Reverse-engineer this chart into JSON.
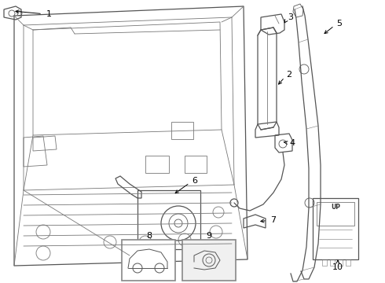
{
  "bg_color": "#ffffff",
  "line_color": "#555555",
  "thin_color": "#777777",
  "label_color": "#000000",
  "figsize": [
    4.9,
    3.6
  ],
  "dpi": 100,
  "xlim": [
    0,
    490
  ],
  "ylim": [
    0,
    360
  ]
}
